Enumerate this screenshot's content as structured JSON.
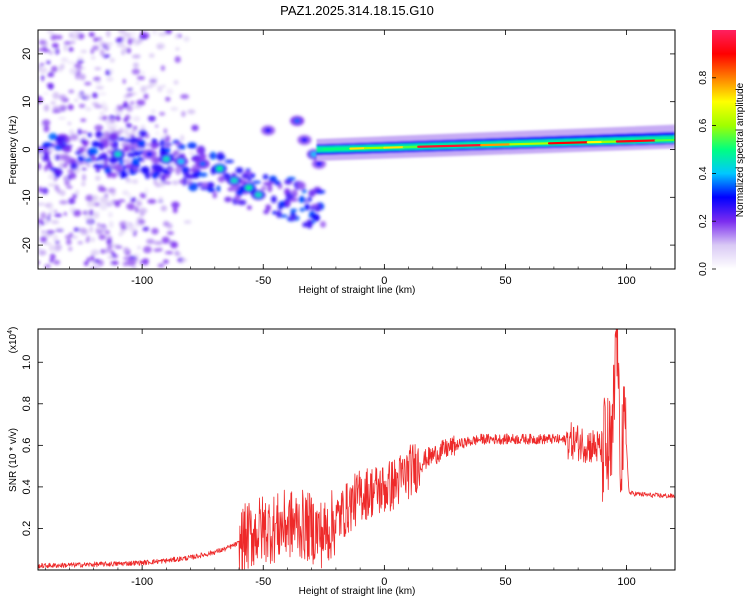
{
  "figure": {
    "title": "PAZ1.2025.314.18.15.G10"
  },
  "colorbar": {
    "label": "Normalized spectral amplitude",
    "range": [
      0.0,
      1.0
    ],
    "ticks": [
      "0.0",
      "0.2",
      "0.4",
      "0.6",
      "0.8"
    ],
    "colors": [
      "#ffffff",
      "#d9c9f5",
      "#7b2cf0",
      "#0000ff",
      "#00c8ff",
      "#00ff80",
      "#a0ff00",
      "#ffff00",
      "#ff8000",
      "#ff0000",
      "#ff2060"
    ]
  },
  "chart_data": [
    {
      "type": "heatmap",
      "title": "PAZ1.2025.314.18.15.G10",
      "xlabel": "Height of straight line (km)",
      "ylabel": "Frequency (Hz)",
      "xlim": [
        -143,
        120
      ],
      "ylim": [
        -25,
        25
      ],
      "xticks": [
        "-100",
        "-50",
        "0",
        "50",
        "100"
      ],
      "yticks": [
        "20",
        "10",
        "0",
        "-10",
        "-20"
      ],
      "features": [
        {
          "name": "scattered low-amplitude noise",
          "x_range": [
            -143,
            -75
          ],
          "freq_range": [
            -25,
            25
          ],
          "amplitude": 0.12
        },
        {
          "name": "descending blobs",
          "points": [
            [
              -110,
              -1,
              0.45
            ],
            [
              -97,
              -1,
              0.3
            ],
            [
              -90,
              -2,
              0.45
            ],
            [
              -84,
              -2.5,
              0.4
            ],
            [
              -75,
              -3,
              0.35
            ],
            [
              -68,
              -4,
              0.5
            ],
            [
              -62,
              -6.5,
              0.45
            ],
            [
              -56,
              -8,
              0.5
            ],
            [
              -52,
              -9.5,
              0.45
            ]
          ]
        },
        {
          "name": "upward branch",
          "points": [
            [
              -48,
              4,
              0.3
            ],
            [
              -36,
              6,
              0.35
            ],
            [
              -33,
              2,
              0.3
            ],
            [
              -29,
              -1,
              0.4
            ],
            [
              -27,
              -3,
              0.3
            ]
          ]
        },
        {
          "name": "main carrier line",
          "x_range": [
            -28,
            120
          ],
          "freq_start": 0,
          "freq_end": 2,
          "amplitude": 0.95
        }
      ]
    },
    {
      "type": "line",
      "xlabel": "Height of straight line (km)",
      "ylabel": "SNR (10 * v/v)",
      "y_multiplier": "(x10",
      "y_multiplier_exp": "4",
      "y_multiplier_close": ")",
      "xlim": [
        -143,
        120
      ],
      "ylim": [
        0,
        1.16
      ],
      "xticks": [
        "-100",
        "-50",
        "0",
        "50",
        "100"
      ],
      "yticks": [
        "0.2",
        "0.4",
        "0.6",
        "0.8",
        "1.0"
      ],
      "color": "#ee2a2a",
      "series": [
        {
          "name": "SNR",
          "x": [
            -143,
            -125,
            -110,
            -100,
            -90,
            -80,
            -72,
            -66,
            -60,
            -55,
            -50,
            -45,
            -40,
            -35,
            -30,
            -25,
            -20,
            -15,
            -10,
            -5,
            0,
            5,
            8,
            12,
            18,
            25,
            32,
            40,
            50,
            60,
            70,
            78,
            85,
            90,
            94,
            96,
            97,
            99,
            100,
            101,
            110,
            120
          ],
          "values": [
            0.02,
            0.025,
            0.03,
            0.035,
            0.045,
            0.06,
            0.08,
            0.1,
            0.13,
            0.17,
            0.2,
            0.2,
            0.22,
            0.22,
            0.2,
            0.17,
            0.24,
            0.3,
            0.36,
            0.38,
            0.39,
            0.42,
            0.45,
            0.49,
            0.54,
            0.58,
            0.61,
            0.63,
            0.63,
            0.63,
            0.63,
            0.62,
            0.6,
            0.58,
            0.55,
            1.16,
            0.62,
            0.61,
            0.6,
            0.37,
            0.36,
            0.355
          ]
        }
      ]
    }
  ]
}
